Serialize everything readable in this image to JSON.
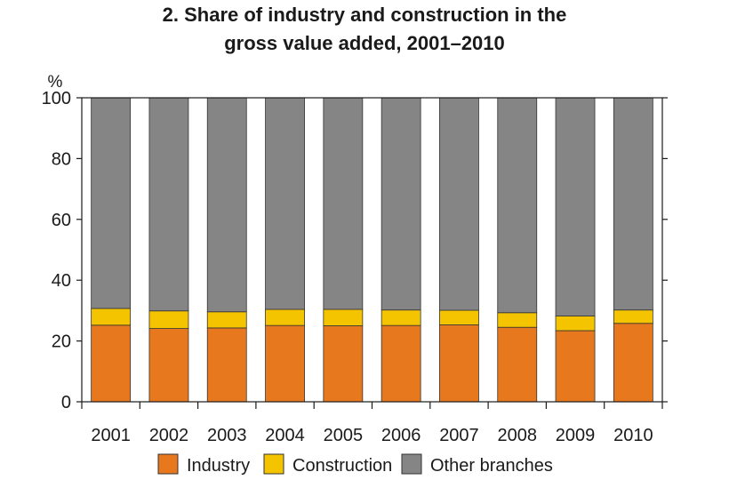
{
  "chart_data": {
    "type": "bar",
    "stacked": true,
    "title_line1": "2. Share of industry and construction in the",
    "title_line2": "gross value added, 2001–2010",
    "ylabel": "%",
    "ylim": [
      0,
      100
    ],
    "yticks": [
      "0",
      "20",
      "40",
      "60",
      "80",
      "100"
    ],
    "grid": false,
    "legend_position": "bottom",
    "categories": [
      "2001",
      "2002",
      "2003",
      "2004",
      "2005",
      "2006",
      "2007",
      "2008",
      "2009",
      "2010"
    ],
    "series": [
      {
        "name": "Industry",
        "color": "#e8781e",
        "values": [
          25.2,
          24.1,
          24.3,
          25.1,
          25.0,
          25.1,
          25.3,
          24.5,
          23.4,
          25.8
        ]
      },
      {
        "name": "Construction",
        "color": "#f5c400",
        "values": [
          5.5,
          5.8,
          5.3,
          5.3,
          5.4,
          5.1,
          4.8,
          4.8,
          4.8,
          4.4
        ]
      },
      {
        "name": "Other branches",
        "color": "#858585",
        "values": [
          69.3,
          70.1,
          70.4,
          69.6,
          69.6,
          69.8,
          69.9,
          70.7,
          71.8,
          69.8
        ]
      }
    ]
  }
}
